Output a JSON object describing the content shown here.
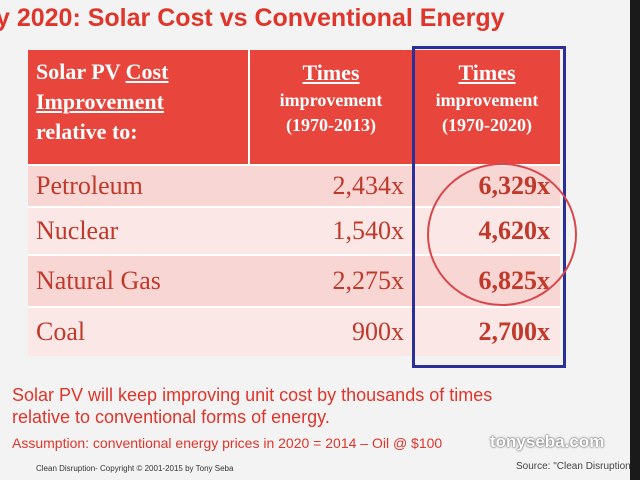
{
  "title": "y 2020: Solar Cost vs Conventional Energy",
  "table": {
    "header": {
      "col0": {
        "line1_prefix": "Solar PV ",
        "line1_underlined": "Cost",
        "line2": "Improvement",
        "line3": "relative to:"
      },
      "col1": {
        "heading": "Times",
        "line2": "improvement",
        "line3": "(1970-2013)"
      },
      "col2": {
        "heading": "Times",
        "line2": "improvement",
        "line3": "(1970-2020)"
      }
    },
    "rows": [
      {
        "source": "Petroleum",
        "improvement_2013": "2,434x",
        "improvement_2020": "6,329x"
      },
      {
        "source": "Nuclear",
        "improvement_2013": "1,540x",
        "improvement_2020": "4,620x"
      },
      {
        "source": "Natural Gas",
        "improvement_2013": "2,275x",
        "improvement_2020": "6,825x"
      },
      {
        "source": "Coal",
        "improvement_2013": "900x",
        "improvement_2020": "2,700x"
      }
    ]
  },
  "notes": {
    "line1": "Solar PV will keep improving unit cost by thousands of times",
    "line2": "relative to conventional forms of energy.",
    "assumption": "Assumption: conventional energy prices in 2020 = 2014 – Oil @ $100"
  },
  "watermark": "tonyseba.com",
  "footer": {
    "copyright": "Clean Disruption- Copyright © 2001-2015 by Tony Seba",
    "source": "Source: \"Clean Disruption"
  },
  "colors": {
    "accent_red": "#e0352b",
    "header_red": "#e8463d",
    "highlight_box": "#2b2f9a",
    "circle": "#d9474c"
  }
}
